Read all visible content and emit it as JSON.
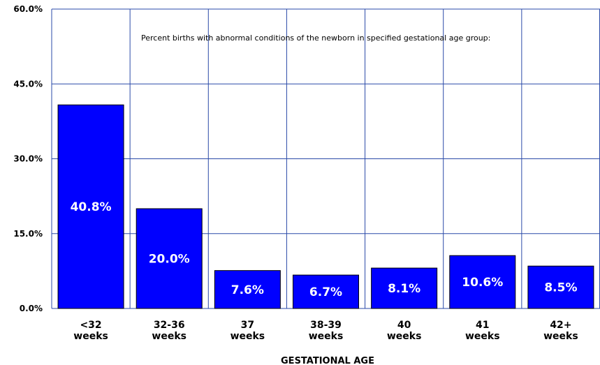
{
  "chart_data": {
    "type": "bar",
    "categories": [
      [
        "<32",
        "weeks"
      ],
      [
        "32-36",
        "weeks"
      ],
      [
        "37",
        "weeks"
      ],
      [
        "38-39",
        "weeks"
      ],
      [
        "40",
        "weeks"
      ],
      [
        "41",
        "weeks"
      ],
      [
        "42+",
        "weeks"
      ]
    ],
    "values": [
      40.8,
      20.0,
      7.6,
      6.7,
      8.1,
      10.6,
      8.5
    ],
    "data_labels": [
      "40.8%",
      "20.0%",
      "7.6%",
      "6.7%",
      "8.1%",
      "10.6%",
      "8.5%"
    ],
    "title": "",
    "annotation": "Percent births with abnormal conditions of the newborn in specified gestational age group:",
    "xlabel": "GESTATIONAL AGE",
    "ylabel": "",
    "ylim": [
      0,
      60
    ],
    "yticks": [
      0,
      15,
      30,
      45,
      60
    ],
    "ytick_labels": [
      "0.0%",
      "15.0%",
      "30.0%",
      "45.0%",
      "60.0%"
    ],
    "grid": true,
    "colors": {
      "bar": "#0000ff",
      "bar_edge": "#000000",
      "grid": "#2a4aa8"
    }
  }
}
